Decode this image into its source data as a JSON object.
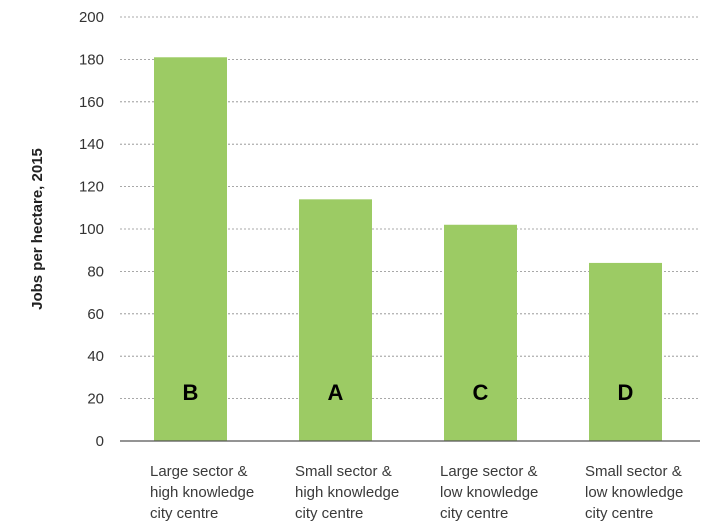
{
  "chart_data": {
    "type": "bar",
    "categories": [
      [
        "Large sector &",
        "high knowledge",
        "city centre"
      ],
      [
        "Small sector &",
        "high knowledge",
        "city centre"
      ],
      [
        "Large sector &",
        "low knowledge",
        "city centre"
      ],
      [
        "Small sector &",
        "low knowledge",
        "city centre"
      ]
    ],
    "bar_labels": [
      "B",
      "A",
      "C",
      "D"
    ],
    "values": [
      181,
      114,
      102,
      84
    ],
    "ylabel": "Jobs per hectare, 2015",
    "xlabel": "",
    "ylim": [
      0,
      200
    ],
    "yticks": [
      0,
      20,
      40,
      60,
      80,
      100,
      120,
      140,
      160,
      180,
      200
    ],
    "grid": true,
    "bar_color": "#9ccb64",
    "grid_color": "#8c8c8c",
    "axis_color": "#555555"
  }
}
